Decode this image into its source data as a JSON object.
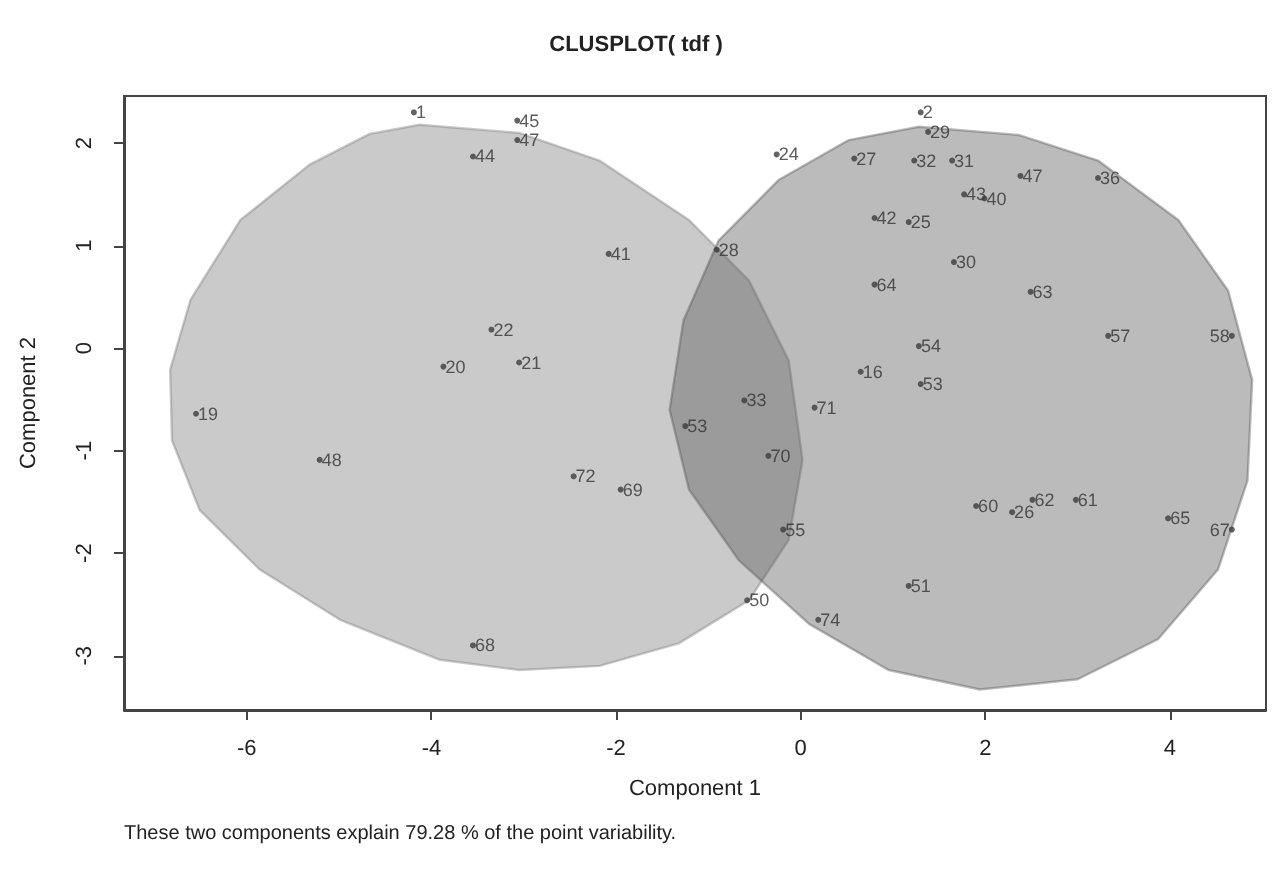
{
  "chart_data": {
    "type": "scatter",
    "title": "CLUSPLOT( tdf )",
    "xlabel": "Component 1",
    "ylabel": "Component 2",
    "annotations": [
      "These two components explain 79.28 % of the point variability.",
      {
        "text": "1",
        "x": -4.19,
        "y": 2.3
      },
      {
        "text": "45",
        "x": -3.07,
        "y": 2.22
      },
      {
        "text": "47",
        "x": -3.07,
        "y": 2.03
      },
      {
        "text": "44",
        "x": -3.55,
        "y": 1.87
      },
      {
        "text": "41",
        "x": -2.08,
        "y": 0.92
      },
      {
        "text": "22",
        "x": -3.35,
        "y": 0.18
      },
      {
        "text": "20",
        "x": -3.87,
        "y": -0.18
      },
      {
        "text": "21",
        "x": -3.05,
        "y": -0.14
      },
      {
        "text": "19",
        "x": -6.55,
        "y": -0.64
      },
      {
        "text": "48",
        "x": -5.21,
        "y": -1.09
      },
      {
        "text": "72",
        "x": -2.46,
        "y": -1.25
      },
      {
        "text": "69",
        "x": -1.95,
        "y": -1.38
      },
      {
        "text": "68",
        "x": -3.55,
        "y": -2.9
      },
      {
        "text": "50",
        "x": -0.58,
        "y": -2.46
      },
      {
        "text": "28",
        "x": -0.91,
        "y": 0.96
      },
      {
        "text": "53",
        "x": -1.25,
        "y": -0.76
      },
      {
        "text": "33",
        "x": -0.61,
        "y": -0.51
      },
      {
        "text": "71",
        "x": 0.15,
        "y": -0.58
      },
      {
        "text": "70",
        "x": -0.35,
        "y": -1.05
      },
      {
        "text": "55",
        "x": -0.19,
        "y": -1.77
      },
      {
        "text": "51",
        "x": 1.17,
        "y": -2.32
      },
      {
        "text": "74",
        "x": 0.19,
        "y": -2.65
      },
      {
        "text": "2",
        "x": 1.3,
        "y": 2.3
      },
      {
        "text": "29",
        "x": 1.38,
        "y": 2.11
      },
      {
        "text": "27",
        "x": 0.58,
        "y": 1.85
      },
      {
        "text": "24",
        "x": -0.26,
        "y": 1.89
      },
      {
        "text": "32",
        "x": 1.23,
        "y": 1.83
      },
      {
        "text": "31",
        "x": 1.64,
        "y": 1.83
      },
      {
        "text": "47",
        "x": 2.38,
        "y": 1.68
      },
      {
        "text": "43",
        "x": 1.77,
        "y": 1.5
      },
      {
        "text": "40",
        "x": 1.99,
        "y": 1.46
      },
      {
        "text": "36",
        "x": 3.22,
        "y": 1.66
      },
      {
        "text": "42",
        "x": 0.8,
        "y": 1.27
      },
      {
        "text": "25",
        "x": 1.17,
        "y": 1.23
      },
      {
        "text": "30",
        "x": 1.66,
        "y": 0.84
      },
      {
        "text": "64",
        "x": 0.8,
        "y": 0.62
      },
      {
        "text": "63",
        "x": 2.49,
        "y": 0.55
      },
      {
        "text": "57",
        "x": 3.33,
        "y": 0.12
      },
      {
        "text": "58",
        "x": 4.67,
        "y": 0.12
      },
      {
        "text": "54",
        "x": 1.28,
        "y": 0.02
      },
      {
        "text": "16",
        "x": 0.65,
        "y": -0.23
      },
      {
        "text": "53",
        "x": 1.3,
        "y": -0.35
      },
      {
        "text": "60",
        "x": 1.9,
        "y": -1.54
      },
      {
        "text": "26",
        "x": 2.29,
        "y": -1.6
      },
      {
        "text": "62",
        "x": 2.51,
        "y": -1.48
      },
      {
        "text": "61",
        "x": 2.98,
        "y": -1.48
      },
      {
        "text": "65",
        "x": 3.98,
        "y": -1.66
      },
      {
        "text": "67",
        "x": 4.67,
        "y": -1.77
      }
    ],
    "xlim": [
      -7.33,
      5.04
    ],
    "ylim": [
      -3.53,
      2.46
    ],
    "xticks": [
      -6,
      -4,
      -2,
      0,
      2,
      4
    ],
    "yticks": [
      -3,
      -2,
      -1,
      0,
      1,
      2
    ],
    "grid": false,
    "series": [
      {
        "type": "area",
        "color": "#7a7a7a",
        "x": [
          -4.13,
          -3.05,
          -2.18,
          -1.21,
          -0.56,
          -0.13,
          0.02,
          -0.13,
          -0.56,
          -1.32,
          -2.18,
          -3.05,
          -3.91,
          -4.99,
          -5.86,
          -6.51,
          -6.81,
          -6.83,
          -6.61,
          -6.07,
          -5.32,
          -4.67,
          -4.13
        ],
        "values": [
          2.18,
          2.1,
          1.83,
          1.25,
          0.66,
          -0.12,
          -1.09,
          -1.87,
          -2.46,
          -2.88,
          -3.1,
          -3.14,
          -3.04,
          -2.65,
          -2.16,
          -1.58,
          -0.9,
          -0.21,
          0.47,
          1.25,
          1.79,
          2.09,
          2.18
        ]
      },
      {
        "type": "area",
        "color": "#555555",
        "x": [
          1.28,
          2.36,
          3.22,
          4.09,
          4.63,
          4.89,
          4.84,
          4.52,
          3.87,
          3.0,
          1.94,
          0.95,
          0.09,
          -0.67,
          -1.21,
          -1.42,
          -1.27,
          -0.89,
          -0.24,
          0.52,
          1.28
        ],
        "values": [
          2.16,
          2.08,
          1.83,
          1.25,
          0.56,
          -0.31,
          -1.29,
          -2.16,
          -2.84,
          -3.23,
          -3.33,
          -3.14,
          -2.69,
          -2.07,
          -1.38,
          -0.6,
          0.27,
          1.05,
          1.64,
          2.03,
          2.16
        ]
      },
      {
        "color": "#3c3c3c",
        "marker": "circle",
        "x": [
          -4.19,
          -3.07,
          -3.07,
          -3.55,
          -2.08,
          -3.35,
          -3.87,
          -3.05,
          -6.55,
          -5.21,
          -2.46,
          -1.95,
          -3.55,
          -0.58,
          -0.91,
          -1.25,
          -0.61,
          0.15,
          -0.35,
          -0.19,
          1.17,
          0.19,
          1.3,
          1.38,
          0.58,
          -0.26,
          1.23,
          1.64,
          2.38,
          1.77,
          1.99,
          3.22,
          0.8,
          1.17,
          1.66,
          0.8,
          2.49,
          3.33,
          4.67,
          1.28,
          0.65,
          1.3,
          1.9,
          2.29,
          2.51,
          2.98,
          3.98,
          4.67
        ],
        "values": [
          2.3,
          2.22,
          2.03,
          1.87,
          0.92,
          0.18,
          -0.18,
          -0.14,
          -0.64,
          -1.09,
          -1.25,
          -1.38,
          -2.9,
          -2.46,
          0.96,
          -0.76,
          -0.51,
          -0.58,
          -1.05,
          -1.77,
          -2.32,
          -2.65,
          2.3,
          2.11,
          1.85,
          1.89,
          1.83,
          1.83,
          1.68,
          1.5,
          1.46,
          1.66,
          1.27,
          1.23,
          0.84,
          0.62,
          0.55,
          0.12,
          0.12,
          0.02,
          -0.23,
          -0.35,
          -1.54,
          -1.6,
          -1.48,
          -1.48,
          -1.66,
          -1.77
        ]
      }
    ]
  }
}
